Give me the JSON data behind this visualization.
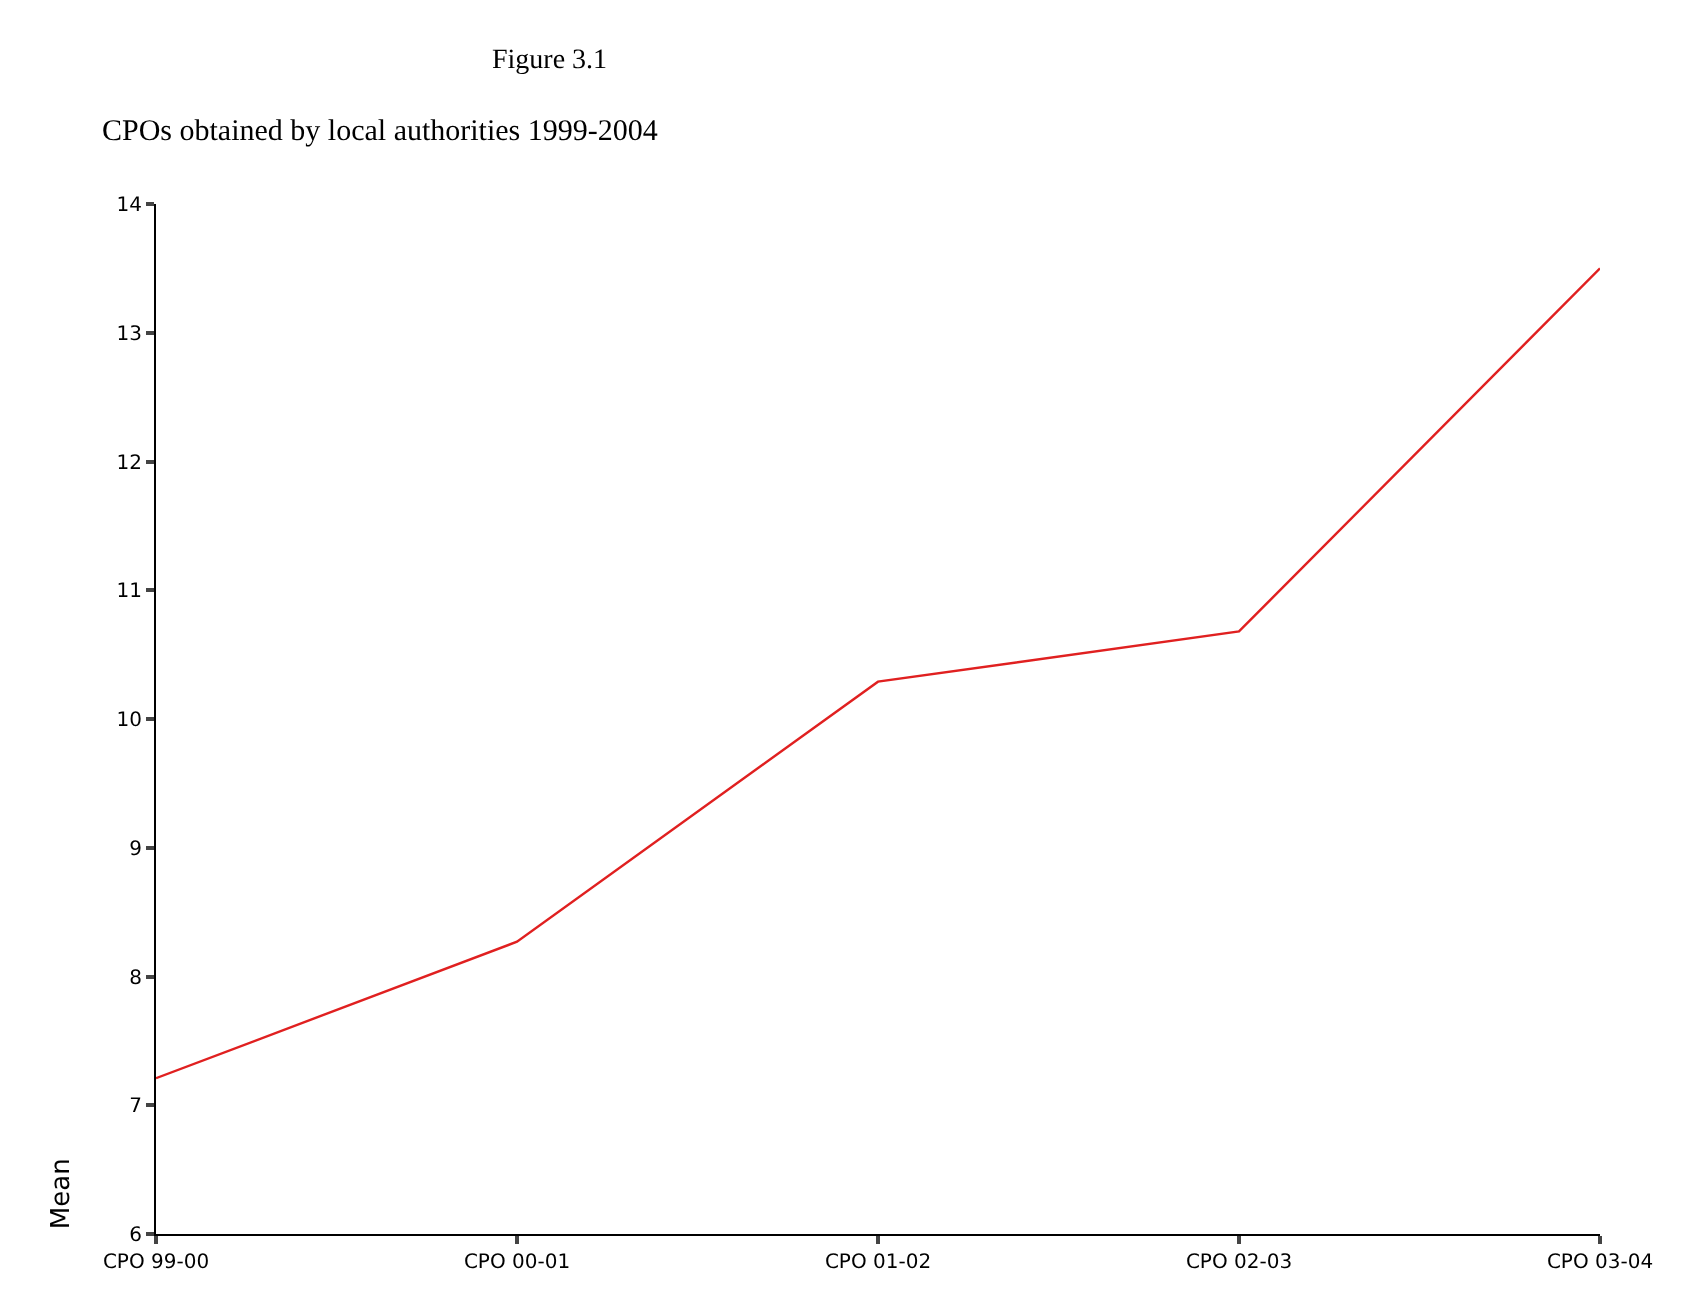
{
  "chart_data": {
    "type": "line",
    "title": "Figure 3.1",
    "subtitle": "CPOs obtained by local authorities 1999-2004",
    "ylabel": "Mean",
    "categories": [
      "CPO 99-00",
      "CPO 00-01",
      "CPO 01-02",
      "CPO 02-03",
      "CPO 03-04"
    ],
    "series": [
      {
        "color": "#e02020",
        "values": [
          7.21,
          8.27,
          10.29,
          10.68,
          13.5
        ]
      }
    ],
    "ylim": [
      6,
      14
    ],
    "yticks": [
      6,
      7,
      8,
      9,
      10,
      11,
      12,
      13,
      14
    ],
    "legend": false,
    "marker": "none",
    "line_style": "solid"
  }
}
